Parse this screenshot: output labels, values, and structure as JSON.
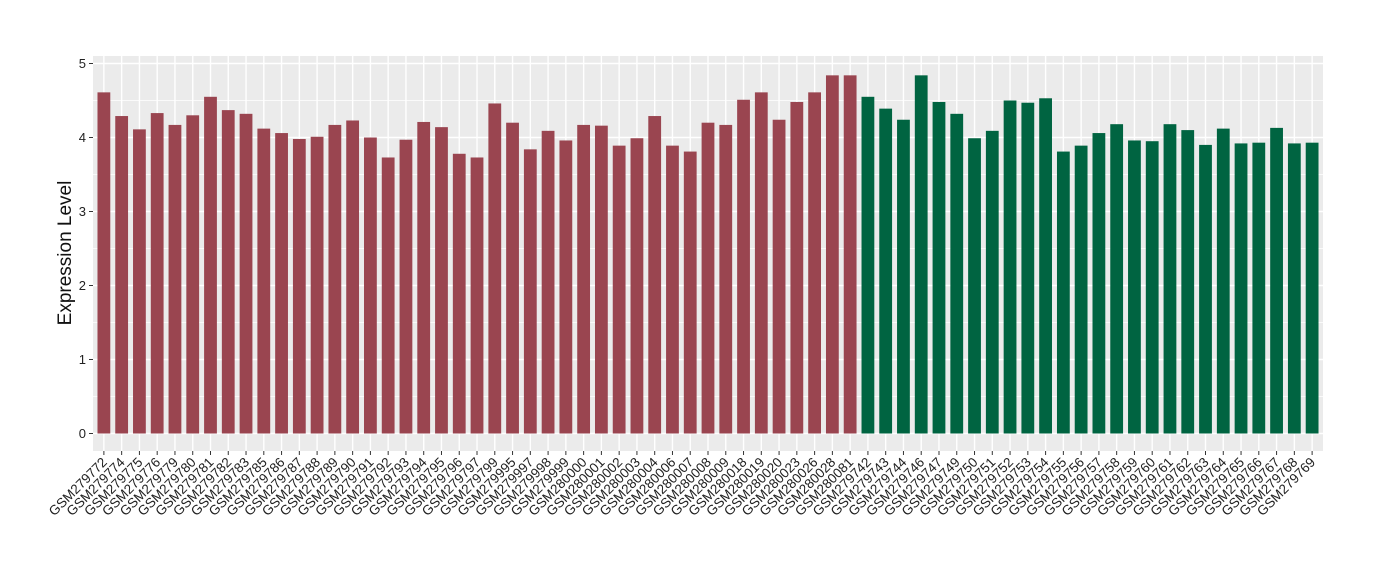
{
  "chart_data": {
    "type": "bar",
    "title": "",
    "xlabel": "",
    "ylabel": "Expression Level",
    "ylim": [
      0,
      5
    ],
    "yticks": [
      0,
      1,
      2,
      3,
      4,
      5
    ],
    "grid": true,
    "legend": "none",
    "colors": {
      "group_1": "#9a4550",
      "group_2": "#006441",
      "panel_background": "#ebebeb",
      "gridline": "#ffffff"
    },
    "bars": [
      {
        "label": "GSM279772",
        "value": 4.61,
        "group": "group_1"
      },
      {
        "label": "GSM279774",
        "value": 4.29,
        "group": "group_1"
      },
      {
        "label": "GSM279775",
        "value": 4.11,
        "group": "group_1"
      },
      {
        "label": "GSM279776",
        "value": 4.33,
        "group": "group_1"
      },
      {
        "label": "GSM279779",
        "value": 4.17,
        "group": "group_1"
      },
      {
        "label": "GSM279780",
        "value": 4.3,
        "group": "group_1"
      },
      {
        "label": "GSM279781",
        "value": 4.55,
        "group": "group_1"
      },
      {
        "label": "GSM279782",
        "value": 4.37,
        "group": "group_1"
      },
      {
        "label": "GSM279783",
        "value": 4.32,
        "group": "group_1"
      },
      {
        "label": "GSM279785",
        "value": 4.12,
        "group": "group_1"
      },
      {
        "label": "GSM279786",
        "value": 4.06,
        "group": "group_1"
      },
      {
        "label": "GSM279787",
        "value": 3.98,
        "group": "group_1"
      },
      {
        "label": "GSM279788",
        "value": 4.01,
        "group": "group_1"
      },
      {
        "label": "GSM279789",
        "value": 4.17,
        "group": "group_1"
      },
      {
        "label": "GSM279790",
        "value": 4.23,
        "group": "group_1"
      },
      {
        "label": "GSM279791",
        "value": 4.0,
        "group": "group_1"
      },
      {
        "label": "GSM279792",
        "value": 3.73,
        "group": "group_1"
      },
      {
        "label": "GSM279793",
        "value": 3.97,
        "group": "group_1"
      },
      {
        "label": "GSM279794",
        "value": 4.21,
        "group": "group_1"
      },
      {
        "label": "GSM279795",
        "value": 4.14,
        "group": "group_1"
      },
      {
        "label": "GSM279796",
        "value": 3.78,
        "group": "group_1"
      },
      {
        "label": "GSM279797",
        "value": 3.73,
        "group": "group_1"
      },
      {
        "label": "GSM279799",
        "value": 4.46,
        "group": "group_1"
      },
      {
        "label": "GSM279995",
        "value": 4.2,
        "group": "group_1"
      },
      {
        "label": "GSM279997",
        "value": 3.84,
        "group": "group_1"
      },
      {
        "label": "GSM279998",
        "value": 4.09,
        "group": "group_1"
      },
      {
        "label": "GSM279999",
        "value": 3.96,
        "group": "group_1"
      },
      {
        "label": "GSM280000",
        "value": 4.17,
        "group": "group_1"
      },
      {
        "label": "GSM280001",
        "value": 4.16,
        "group": "group_1"
      },
      {
        "label": "GSM280002",
        "value": 3.89,
        "group": "group_1"
      },
      {
        "label": "GSM280003",
        "value": 3.99,
        "group": "group_1"
      },
      {
        "label": "GSM280004",
        "value": 4.29,
        "group": "group_1"
      },
      {
        "label": "GSM280006",
        "value": 3.89,
        "group": "group_1"
      },
      {
        "label": "GSM280007",
        "value": 3.81,
        "group": "group_1"
      },
      {
        "label": "GSM280008",
        "value": 4.2,
        "group": "group_1"
      },
      {
        "label": "GSM280009",
        "value": 4.17,
        "group": "group_1"
      },
      {
        "label": "GSM280018",
        "value": 4.51,
        "group": "group_1"
      },
      {
        "label": "GSM280019",
        "value": 4.61,
        "group": "group_1"
      },
      {
        "label": "GSM280020",
        "value": 4.24,
        "group": "group_1"
      },
      {
        "label": "GSM280023",
        "value": 4.48,
        "group": "group_1"
      },
      {
        "label": "GSM280026",
        "value": 4.61,
        "group": "group_1"
      },
      {
        "label": "GSM280028",
        "value": 4.84,
        "group": "group_1"
      },
      {
        "label": "GSM280081",
        "value": 4.84,
        "group": "group_1"
      },
      {
        "label": "GSM279742",
        "value": 4.55,
        "group": "group_2"
      },
      {
        "label": "GSM279743",
        "value": 4.39,
        "group": "group_2"
      },
      {
        "label": "GSM279744",
        "value": 4.24,
        "group": "group_2"
      },
      {
        "label": "GSM279746",
        "value": 4.84,
        "group": "group_2"
      },
      {
        "label": "GSM279747",
        "value": 4.48,
        "group": "group_2"
      },
      {
        "label": "GSM279749",
        "value": 4.32,
        "group": "group_2"
      },
      {
        "label": "GSM279750",
        "value": 3.99,
        "group": "group_2"
      },
      {
        "label": "GSM279751",
        "value": 4.09,
        "group": "group_2"
      },
      {
        "label": "GSM279752",
        "value": 4.5,
        "group": "group_2"
      },
      {
        "label": "GSM279753",
        "value": 4.47,
        "group": "group_2"
      },
      {
        "label": "GSM279754",
        "value": 4.53,
        "group": "group_2"
      },
      {
        "label": "GSM279755",
        "value": 3.81,
        "group": "group_2"
      },
      {
        "label": "GSM279756",
        "value": 3.89,
        "group": "group_2"
      },
      {
        "label": "GSM279757",
        "value": 4.06,
        "group": "group_2"
      },
      {
        "label": "GSM279758",
        "value": 4.18,
        "group": "group_2"
      },
      {
        "label": "GSM279759",
        "value": 3.96,
        "group": "group_2"
      },
      {
        "label": "GSM279760",
        "value": 3.95,
        "group": "group_2"
      },
      {
        "label": "GSM279761",
        "value": 4.18,
        "group": "group_2"
      },
      {
        "label": "GSM279762",
        "value": 4.1,
        "group": "group_2"
      },
      {
        "label": "GSM279763",
        "value": 3.9,
        "group": "group_2"
      },
      {
        "label": "GSM279764",
        "value": 4.12,
        "group": "group_2"
      },
      {
        "label": "GSM279765",
        "value": 3.92,
        "group": "group_2"
      },
      {
        "label": "GSM279766",
        "value": 3.93,
        "group": "group_2"
      },
      {
        "label": "GSM279767",
        "value": 4.13,
        "group": "group_2"
      },
      {
        "label": "GSM279768",
        "value": 3.92,
        "group": "group_2"
      },
      {
        "label": "GSM279769",
        "value": 3.93,
        "group": "group_2"
      }
    ]
  }
}
